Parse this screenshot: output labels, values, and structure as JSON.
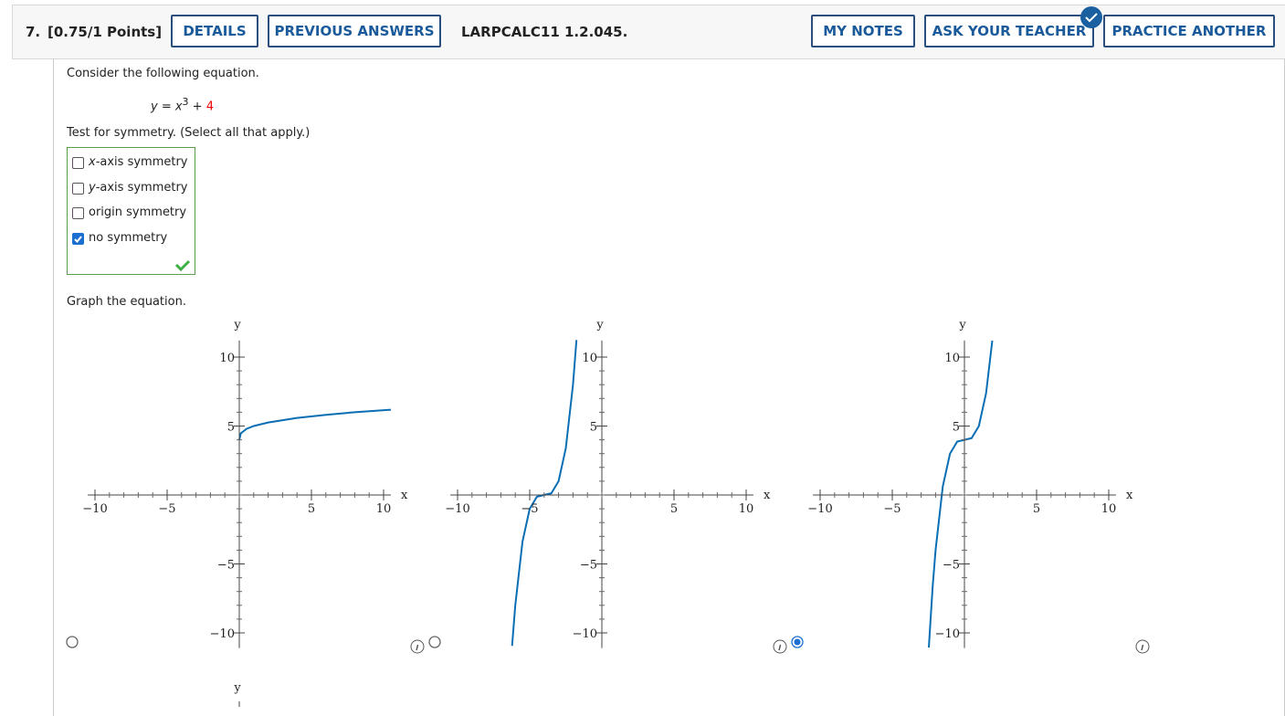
{
  "header": {
    "question": "7.",
    "points": "[0.75/1 Points]",
    "left_buttons": [
      "DETAILS",
      "PREVIOUS ANSWERS"
    ],
    "code": "LARPCALC11 1.2.045.",
    "right_buttons": [
      "MY NOTES",
      "ASK YOUR TEACHER",
      "PRACTICE ANOTHER"
    ]
  },
  "prompt": "Consider the following equation.",
  "equation": {
    "lhs": "y = x",
    "exponent": "3",
    "plus": " + ",
    "constant": "4"
  },
  "symmetry": {
    "question": "Test for symmetry. (Select all that apply.)",
    "options": [
      {
        "var": "x",
        "text": "-axis symmetry",
        "checked": false
      },
      {
        "var": "y",
        "text": "-axis symmetry",
        "checked": false
      },
      {
        "text": "origin symmetry",
        "checked": false
      },
      {
        "text": "no symmetry",
        "checked": true
      }
    ]
  },
  "graph_prompt": "Graph the equation.",
  "graphs": [
    {
      "xlabel": "x",
      "ylabel": "y",
      "xticks": [
        {
          "value": -10,
          "label": "−10"
        },
        {
          "value": -5,
          "label": "−5"
        },
        5,
        10
      ],
      "yticks": [
        10,
        5,
        {
          "value": -5,
          "label": "−5"
        },
        {
          "value": -10,
          "label": "−10"
        }
      ],
      "selected": false
    },
    {
      "xlabel": "x",
      "ylabel": "y",
      "xticks": [
        {
          "value": -10,
          "label": "−10"
        },
        {
          "value": -5,
          "label": "−5"
        },
        5,
        10
      ],
      "yticks": [
        10,
        5,
        {
          "value": -5,
          "label": "−5"
        },
        {
          "value": -10,
          "label": "−10"
        }
      ],
      "selected": false
    },
    {
      "xlabel": "x",
      "ylabel": "y",
      "xticks": [
        {
          "value": -10,
          "label": "−10"
        },
        {
          "value": -5,
          "label": "−5"
        },
        5,
        10
      ],
      "yticks": [
        10,
        5,
        {
          "value": -5,
          "label": "−5"
        },
        {
          "value": -10,
          "label": "−10"
        }
      ],
      "selected": true
    }
  ],
  "next_graph_ylabel": "y"
}
